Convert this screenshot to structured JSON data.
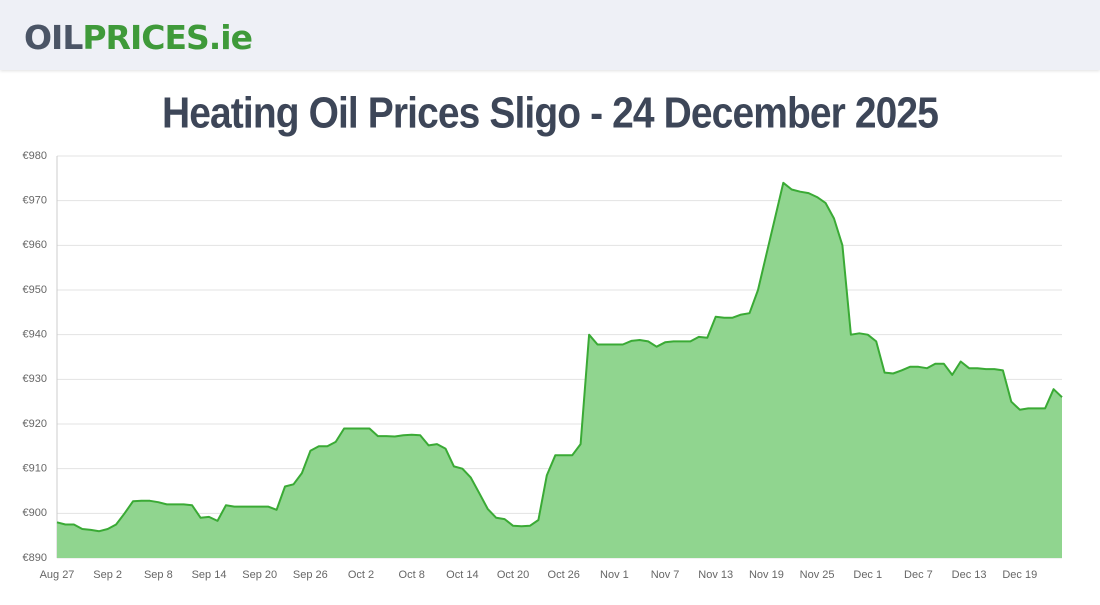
{
  "header": {
    "logo": [
      "OIL",
      "PRICES",
      ".ie"
    ]
  },
  "chart_data": {
    "type": "area",
    "title": "Heating Oil Prices Sligo - 24 December 2025",
    "categories": [
      "Aug 27",
      null,
      null,
      null,
      null,
      null,
      "Sep 2",
      null,
      null,
      null,
      null,
      null,
      "Sep 8",
      null,
      null,
      null,
      null,
      null,
      "Sep 14",
      null,
      null,
      null,
      null,
      null,
      "Sep 20",
      null,
      null,
      null,
      null,
      null,
      "Sep 26",
      null,
      null,
      null,
      null,
      null,
      "Oct 2",
      null,
      null,
      null,
      null,
      null,
      "Oct 8",
      null,
      null,
      null,
      null,
      null,
      "Oct 14",
      null,
      null,
      null,
      null,
      null,
      "Oct 20",
      null,
      null,
      null,
      null,
      null,
      "Oct 26",
      null,
      null,
      null,
      null,
      null,
      "Nov 1",
      null,
      null,
      null,
      null,
      null,
      "Nov 7",
      null,
      null,
      null,
      null,
      null,
      "Nov 13",
      null,
      null,
      null,
      null,
      null,
      "Nov 19",
      null,
      null,
      null,
      null,
      null,
      "Nov 25",
      null,
      null,
      null,
      null,
      null,
      "Dec 1",
      null,
      null,
      null,
      null,
      null,
      "Dec 7",
      null,
      null,
      null,
      null,
      null,
      "Dec 13",
      null,
      null,
      null,
      null,
      null,
      "Dec 19",
      null,
      null,
      null,
      null,
      null
    ],
    "values": [
      898,
      897.5,
      897.5,
      896.5,
      896.3,
      896,
      896.5,
      897.5,
      900,
      902.7,
      902.8,
      902.8,
      902.5,
      902,
      902,
      902,
      901.8,
      899,
      899.2,
      898.3,
      901.8,
      901.5,
      901.5,
      901.5,
      901.5,
      901.5,
      900.8,
      906,
      906.5,
      909,
      914,
      915,
      915,
      916,
      919,
      919,
      919,
      919,
      917.3,
      917.3,
      917.2,
      917.5,
      917.6,
      917.5,
      915.2,
      915.5,
      914.5,
      910.5,
      910,
      908,
      904.5,
      901,
      899,
      898.7,
      897.2,
      897.1,
      897.2,
      898.5,
      908.5,
      913,
      913,
      913,
      915.5,
      940,
      937.8,
      937.8,
      937.8,
      937.8,
      938.6,
      938.8,
      938.5,
      937.3,
      938.3,
      938.5,
      938.5,
      938.5,
      939.5,
      939.3,
      944,
      943.8,
      943.8,
      944.5,
      944.8,
      950,
      958,
      966,
      974,
      972.5,
      972,
      971.7,
      970.8,
      969.5,
      966,
      960,
      940,
      940.3,
      940,
      938.5,
      931.5,
      931.3,
      932,
      932.8,
      932.8,
      932.5,
      933.5,
      933.5,
      931,
      934,
      932.5,
      932.5,
      932.3,
      932.3,
      932,
      925,
      923.2,
      923.5,
      923.5,
      923.5,
      927.8,
      926
    ],
    "color": "#3aaa35",
    "fill": "#90d58f",
    "ylim": [
      890,
      980
    ],
    "yticks": [
      {
        "value": 890,
        "label": "€890"
      },
      {
        "value": 900,
        "label": "€900"
      },
      {
        "value": 910,
        "label": "€910"
      },
      {
        "value": 920,
        "label": "€920"
      },
      {
        "value": 930,
        "label": "€930"
      },
      {
        "value": 940,
        "label": "€940"
      },
      {
        "value": 950,
        "label": "€950"
      },
      {
        "value": 960,
        "label": "€960"
      },
      {
        "value": 970,
        "label": "€970"
      },
      {
        "value": 980,
        "label": "€980"
      }
    ],
    "grid": true
  }
}
